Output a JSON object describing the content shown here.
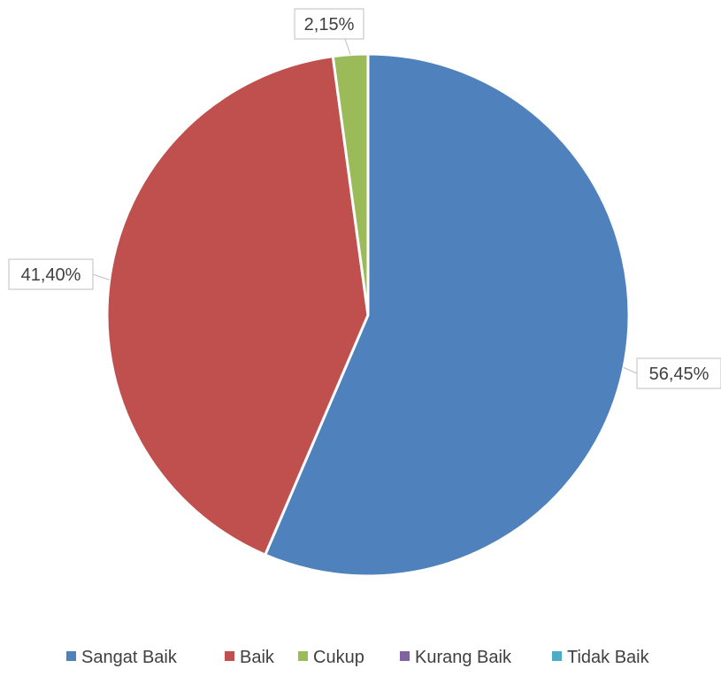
{
  "chart_data": {
    "type": "pie",
    "categories": [
      "Sangat Baik",
      "Baik",
      "Cukup",
      "Kurang Baik",
      "Tidak Baik"
    ],
    "values": [
      56.45,
      41.4,
      2.15,
      0,
      0
    ],
    "data_labels": [
      "56,45%",
      "41,40%",
      "2,15%",
      "",
      ""
    ],
    "colors": [
      "#4F81BD",
      "#C0504D",
      "#9BBB59",
      "#8064A2",
      "#4BACC6"
    ],
    "start_angle": "12 o'clock",
    "direction": "clockwise",
    "legend_position": "bottom"
  }
}
